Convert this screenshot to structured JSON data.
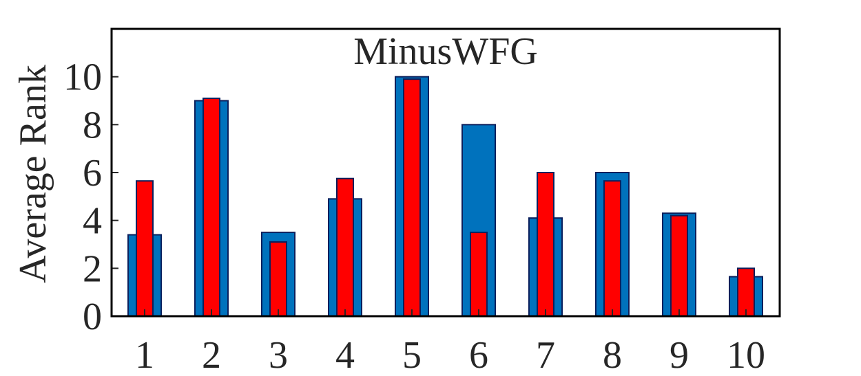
{
  "chart_data": {
    "type": "bar",
    "title": "MinusWFG",
    "xlabel": "",
    "ylabel": "Average Rank",
    "categories": [
      "1",
      "2",
      "3",
      "4",
      "5",
      "6",
      "7",
      "8",
      "9",
      "10"
    ],
    "ylim": [
      0,
      12
    ],
    "yticks": [
      "0",
      "2",
      "4",
      "6",
      "8",
      "10"
    ],
    "grid": false,
    "series": [
      {
        "values": [
          3.4,
          9.0,
          3.5,
          4.9,
          10.0,
          8.0,
          4.1,
          6.0,
          4.3,
          1.65
        ],
        "color": "#0072BD",
        "edge": "#0b1f5c"
      },
      {
        "values": [
          5.65,
          9.1,
          3.1,
          5.75,
          9.9,
          3.5,
          6.0,
          5.65,
          4.2,
          2.0
        ],
        "color": "#FF0000",
        "edge": "#0b1f5c"
      }
    ]
  }
}
